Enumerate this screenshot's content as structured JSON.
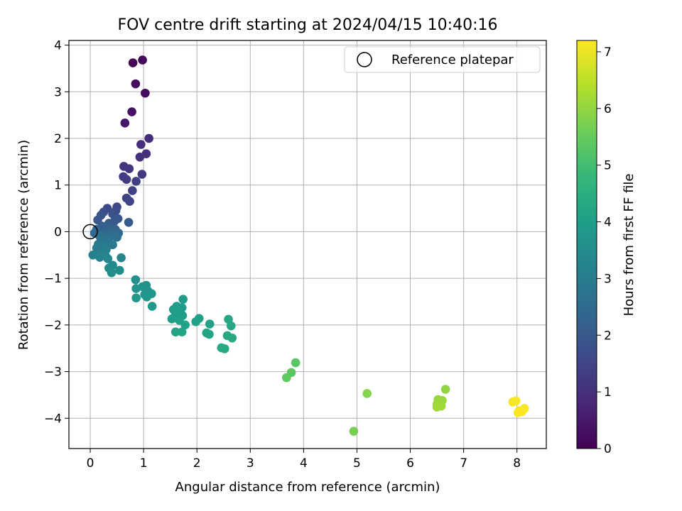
{
  "chart_data": {
    "type": "scatter",
    "title": "FOV centre drift starting at 2024/04/15 10:40:16",
    "xlabel": "Angular distance from reference (arcmin)",
    "ylabel": "Rotation from reference (arcmin)",
    "xlim": [
      -0.4,
      8.55
    ],
    "ylim": [
      -4.65,
      4.1
    ],
    "xticks": [
      0,
      1,
      2,
      3,
      4,
      5,
      6,
      7,
      8
    ],
    "yticks": [
      -4,
      -3,
      -2,
      -1,
      0,
      1,
      2,
      3,
      4
    ],
    "grid": true,
    "legend": {
      "placement": "top-right",
      "entries": [
        "Reference platepar"
      ]
    },
    "reference_point": {
      "x": 0,
      "y": 0
    },
    "colorbar": {
      "label": "Hours from first FF file",
      "range": [
        0,
        7.2
      ],
      "ticks": [
        0,
        1,
        2,
        3,
        4,
        5,
        6,
        7
      ],
      "colormap": "viridis",
      "stops": [
        "#440154",
        "#482878",
        "#3e4989",
        "#31688e",
        "#26828e",
        "#1f9e89",
        "#35b779",
        "#6ece58",
        "#b5de2b",
        "#fde725"
      ]
    },
    "points": [
      {
        "x": 0.8,
        "y": 3.62,
        "h": 0.1
      },
      {
        "x": 0.98,
        "y": 3.68,
        "h": 0.15
      },
      {
        "x": 0.85,
        "y": 3.17,
        "h": 0.2
      },
      {
        "x": 1.03,
        "y": 2.97,
        "h": 0.25
      },
      {
        "x": 0.78,
        "y": 2.57,
        "h": 0.35
      },
      {
        "x": 0.65,
        "y": 2.33,
        "h": 0.45
      },
      {
        "x": 1.1,
        "y": 2.0,
        "h": 0.9
      },
      {
        "x": 0.95,
        "y": 1.87,
        "h": 0.95
      },
      {
        "x": 1.05,
        "y": 1.67,
        "h": 1.0
      },
      {
        "x": 0.93,
        "y": 1.6,
        "h": 1.05
      },
      {
        "x": 0.63,
        "y": 1.4,
        "h": 1.1
      },
      {
        "x": 0.73,
        "y": 1.35,
        "h": 1.15
      },
      {
        "x": 0.97,
        "y": 1.23,
        "h": 1.2
      },
      {
        "x": 0.62,
        "y": 1.18,
        "h": 1.25
      },
      {
        "x": 0.68,
        "y": 1.12,
        "h": 1.3
      },
      {
        "x": 0.86,
        "y": 1.08,
        "h": 1.35
      },
      {
        "x": 0.79,
        "y": 0.88,
        "h": 1.4
      },
      {
        "x": 0.68,
        "y": 0.72,
        "h": 1.45
      },
      {
        "x": 0.74,
        "y": 0.65,
        "h": 1.5
      },
      {
        "x": 0.5,
        "y": 0.53,
        "h": 1.55
      },
      {
        "x": 0.32,
        "y": 0.5,
        "h": 1.6
      },
      {
        "x": 0.48,
        "y": 0.45,
        "h": 1.7
      },
      {
        "x": 0.25,
        "y": 0.42,
        "h": 1.75
      },
      {
        "x": 0.42,
        "y": 0.38,
        "h": 1.8
      },
      {
        "x": 0.2,
        "y": 0.35,
        "h": 1.85
      },
      {
        "x": 0.52,
        "y": 0.28,
        "h": 1.9
      },
      {
        "x": 0.14,
        "y": 0.25,
        "h": 1.95
      },
      {
        "x": 0.45,
        "y": 0.22,
        "h": 2.0
      },
      {
        "x": 0.72,
        "y": 0.2,
        "h": 2.05
      },
      {
        "x": 0.35,
        "y": 0.18,
        "h": 2.1
      },
      {
        "x": 0.22,
        "y": 0.12,
        "h": 2.15
      },
      {
        "x": 0.3,
        "y": 0.08,
        "h": 2.2
      },
      {
        "x": 0.47,
        "y": 0.05,
        "h": 2.25
      },
      {
        "x": 0.12,
        "y": 0.05,
        "h": 2.3
      },
      {
        "x": 0.38,
        "y": 0.02,
        "h": 2.35
      },
      {
        "x": 0.08,
        "y": -0.03,
        "h": 2.4
      },
      {
        "x": 0.53,
        "y": -0.03,
        "h": 2.45
      },
      {
        "x": 0.25,
        "y": -0.05,
        "h": 2.5
      },
      {
        "x": 0.42,
        "y": -0.08,
        "h": 2.55
      },
      {
        "x": 0.18,
        "y": -0.1,
        "h": 2.6
      },
      {
        "x": 0.5,
        "y": -0.12,
        "h": 2.65
      },
      {
        "x": 0.3,
        "y": -0.15,
        "h": 2.7
      },
      {
        "x": 0.2,
        "y": -0.2,
        "h": 2.75
      },
      {
        "x": 0.35,
        "y": -0.22,
        "h": 2.8
      },
      {
        "x": 0.15,
        "y": -0.27,
        "h": 2.85
      },
      {
        "x": 0.42,
        "y": -0.28,
        "h": 2.9
      },
      {
        "x": 0.25,
        "y": -0.3,
        "h": 2.95
      },
      {
        "x": 0.12,
        "y": -0.35,
        "h": 3.0
      },
      {
        "x": 0.3,
        "y": -0.38,
        "h": 3.05
      },
      {
        "x": 0.2,
        "y": -0.45,
        "h": 3.1
      },
      {
        "x": 0.05,
        "y": -0.5,
        "h": 3.15
      },
      {
        "x": 0.28,
        "y": -0.5,
        "h": 3.2
      },
      {
        "x": 0.18,
        "y": -0.55,
        "h": 3.25
      },
      {
        "x": 0.58,
        "y": -0.56,
        "h": 3.3
      },
      {
        "x": 0.33,
        "y": -0.58,
        "h": 3.35
      },
      {
        "x": 0.42,
        "y": -0.72,
        "h": 3.4
      },
      {
        "x": 0.35,
        "y": -0.78,
        "h": 3.45
      },
      {
        "x": 0.55,
        "y": -0.83,
        "h": 3.5
      },
      {
        "x": 0.4,
        "y": -0.88,
        "h": 3.55
      },
      {
        "x": 0.85,
        "y": -1.03,
        "h": 3.6
      },
      {
        "x": 1.05,
        "y": -1.15,
        "h": 3.65
      },
      {
        "x": 0.98,
        "y": -1.18,
        "h": 3.7
      },
      {
        "x": 0.86,
        "y": -1.22,
        "h": 3.72
      },
      {
        "x": 1.08,
        "y": -1.27,
        "h": 3.74
      },
      {
        "x": 1.15,
        "y": -1.33,
        "h": 3.76
      },
      {
        "x": 1.02,
        "y": -1.35,
        "h": 3.78
      },
      {
        "x": 1.06,
        "y": -1.4,
        "h": 3.8
      },
      {
        "x": 0.86,
        "y": -1.42,
        "h": 3.82
      },
      {
        "x": 1.16,
        "y": -1.6,
        "h": 3.84
      },
      {
        "x": 1.74,
        "y": -1.45,
        "h": 3.9
      },
      {
        "x": 1.62,
        "y": -1.6,
        "h": 3.92
      },
      {
        "x": 1.72,
        "y": -1.63,
        "h": 3.94
      },
      {
        "x": 1.56,
        "y": -1.67,
        "h": 3.96
      },
      {
        "x": 1.68,
        "y": -1.72,
        "h": 3.98
      },
      {
        "x": 1.6,
        "y": -1.78,
        "h": 4.0
      },
      {
        "x": 1.73,
        "y": -1.8,
        "h": 4.02
      },
      {
        "x": 1.53,
        "y": -1.87,
        "h": 4.04
      },
      {
        "x": 2.04,
        "y": -1.86,
        "h": 4.06
      },
      {
        "x": 1.67,
        "y": -1.9,
        "h": 4.08
      },
      {
        "x": 1.98,
        "y": -1.93,
        "h": 4.1
      },
      {
        "x": 1.78,
        "y": -2.0,
        "h": 4.12
      },
      {
        "x": 2.24,
        "y": -1.98,
        "h": 4.14
      },
      {
        "x": 1.6,
        "y": -2.15,
        "h": 4.16
      },
      {
        "x": 1.72,
        "y": -2.15,
        "h": 4.18
      },
      {
        "x": 2.18,
        "y": -2.17,
        "h": 4.2
      },
      {
        "x": 2.23,
        "y": -2.2,
        "h": 4.22
      },
      {
        "x": 2.59,
        "y": -1.88,
        "h": 4.25
      },
      {
        "x": 2.64,
        "y": -2.02,
        "h": 4.28
      },
      {
        "x": 2.57,
        "y": -2.23,
        "h": 4.3
      },
      {
        "x": 2.66,
        "y": -2.28,
        "h": 4.32
      },
      {
        "x": 2.46,
        "y": -2.49,
        "h": 4.34
      },
      {
        "x": 2.52,
        "y": -2.51,
        "h": 4.36
      },
      {
        "x": 3.85,
        "y": -2.81,
        "h": 5.3
      },
      {
        "x": 3.77,
        "y": -3.02,
        "h": 5.35
      },
      {
        "x": 3.68,
        "y": -3.13,
        "h": 5.4
      },
      {
        "x": 4.94,
        "y": -4.28,
        "h": 5.7
      },
      {
        "x": 5.19,
        "y": -3.47,
        "h": 5.85
      },
      {
        "x": 6.66,
        "y": -3.38,
        "h": 6.0
      },
      {
        "x": 6.52,
        "y": -3.6,
        "h": 6.05
      },
      {
        "x": 6.55,
        "y": -3.67,
        "h": 6.08
      },
      {
        "x": 6.6,
        "y": -3.62,
        "h": 6.1
      },
      {
        "x": 6.5,
        "y": -3.7,
        "h": 6.12
      },
      {
        "x": 6.58,
        "y": -3.74,
        "h": 6.14
      },
      {
        "x": 6.5,
        "y": -3.76,
        "h": 6.16
      },
      {
        "x": 7.92,
        "y": -3.65,
        "h": 7.1
      },
      {
        "x": 7.98,
        "y": -3.63,
        "h": 7.12
      },
      {
        "x": 8.04,
        "y": -3.84,
        "h": 7.14
      },
      {
        "x": 8.09,
        "y": -3.86,
        "h": 7.16
      },
      {
        "x": 8.14,
        "y": -3.79,
        "h": 7.18
      },
      {
        "x": 8.02,
        "y": -3.88,
        "h": 7.2
      }
    ]
  }
}
